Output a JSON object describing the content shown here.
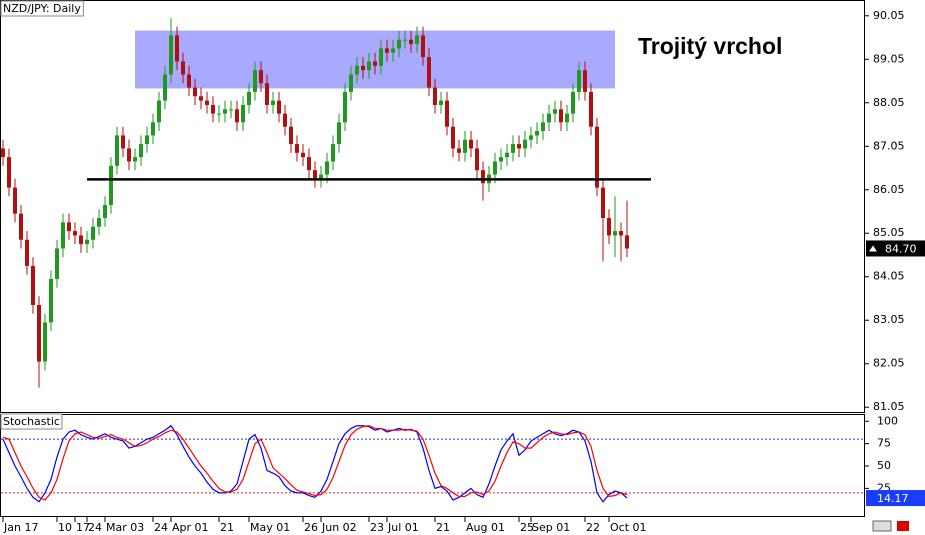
{
  "chart_data": [
    {
      "type": "candlestick",
      "title": "NZD/JPY: Daily",
      "annotation": "Trojitý vrchol",
      "categories": [
        "Jan 17",
        null,
        null,
        null,
        null,
        null,
        null,
        null,
        null,
        "10",
        null,
        null,
        "17",
        null,
        "24",
        null,
        null,
        "Mar 03",
        null,
        null,
        null,
        null,
        null,
        null,
        null,
        "24",
        null,
        null,
        "Apr 01",
        null,
        null,
        null,
        null,
        null,
        null,
        null,
        "21",
        null,
        null,
        null,
        null,
        "May 01",
        null,
        null,
        null,
        null,
        null,
        null,
        null,
        null,
        "26",
        null,
        null,
        "Jun 02",
        null,
        null,
        null,
        null,
        null,
        null,
        null,
        "23",
        null,
        null,
        "Jul 01",
        null,
        null,
        null,
        null,
        null,
        null,
        null,
        "21",
        null,
        null,
        null,
        null,
        "Aug 01",
        null,
        null,
        null,
        null,
        null,
        null,
        null,
        null,
        "25",
        null,
        "Sep 01",
        null,
        null,
        null,
        null,
        null,
        null,
        null,
        null,
        "22",
        null,
        null,
        null,
        "Oct 01",
        null,
        null,
        null
      ],
      "open": [
        87.0,
        86.8,
        86.1,
        85.5,
        84.9,
        84.3,
        83.4,
        82.1,
        83.0,
        84.0,
        84.7,
        85.3,
        85.1,
        85.0,
        84.8,
        84.9,
        85.2,
        85.4,
        85.7,
        86.6,
        87.3,
        87.0,
        86.7,
        86.8,
        87.1,
        87.3,
        87.6,
        88.1,
        88.7,
        89.6,
        89.0,
        88.7,
        88.4,
        88.2,
        88.1,
        88.0,
        87.8,
        87.8,
        87.9,
        87.9,
        87.6,
        88.0,
        88.3,
        88.8,
        88.5,
        88.0,
        88.1,
        87.8,
        87.5,
        87.1,
        86.9,
        86.8,
        86.5,
        86.3,
        86.4,
        86.7,
        87.1,
        87.6,
        88.3,
        88.7,
        88.9,
        88.8,
        89.0,
        88.9,
        89.3,
        89.2,
        89.3,
        89.5,
        89.5,
        89.4,
        89.6,
        89.1,
        88.4,
        88.0,
        88.1,
        87.5,
        87.0,
        86.9,
        87.2,
        87.0,
        86.5,
        86.2,
        86.4,
        86.7,
        86.8,
        86.9,
        87.1,
        87.0,
        87.2,
        87.3,
        87.4,
        87.6,
        87.8,
        87.9,
        87.6,
        87.8,
        88.3,
        88.8,
        88.3,
        87.5,
        86.1,
        85.4,
        85.0,
        85.1,
        85.0
      ],
      "high": [
        87.2,
        87.0,
        86.3,
        85.7,
        85.1,
        84.5,
        83.6,
        83.2,
        84.2,
        84.9,
        85.5,
        85.5,
        85.3,
        85.2,
        85.1,
        85.4,
        85.6,
        85.9,
        86.8,
        87.5,
        87.5,
        87.2,
        87.0,
        87.3,
        87.5,
        87.8,
        88.3,
        88.9,
        90.0,
        89.8,
        89.2,
        88.9,
        88.6,
        88.4,
        88.3,
        88.2,
        88.0,
        88.1,
        88.1,
        88.1,
        88.2,
        88.5,
        89.0,
        89.0,
        88.7,
        88.3,
        88.3,
        88.0,
        87.7,
        87.3,
        87.1,
        87.0,
        86.7,
        86.6,
        86.9,
        87.3,
        87.8,
        88.5,
        88.9,
        89.1,
        89.1,
        89.2,
        89.2,
        89.5,
        89.5,
        89.5,
        89.7,
        89.7,
        89.7,
        89.8,
        89.8,
        89.3,
        88.6,
        88.3,
        88.3,
        87.7,
        87.2,
        87.4,
        87.4,
        87.2,
        86.7,
        86.6,
        86.9,
        87.0,
        87.1,
        87.3,
        87.3,
        87.4,
        87.5,
        87.6,
        87.8,
        88.0,
        88.1,
        88.1,
        88.0,
        88.5,
        89.0,
        89.0,
        88.5,
        87.7,
        86.3,
        85.6,
        85.9,
        85.3,
        85.8
      ],
      "low": [
        86.6,
        85.9,
        85.3,
        84.7,
        84.1,
        83.2,
        81.5,
        81.9,
        82.8,
        83.8,
        84.5,
        84.9,
        84.8,
        84.6,
        84.6,
        84.7,
        85.0,
        85.2,
        85.5,
        86.4,
        86.8,
        86.5,
        86.5,
        86.6,
        86.9,
        87.1,
        87.4,
        87.9,
        88.5,
        88.8,
        88.5,
        88.2,
        88.0,
        87.9,
        87.8,
        87.6,
        87.6,
        87.6,
        87.7,
        87.4,
        87.4,
        87.8,
        88.1,
        88.3,
        87.8,
        87.8,
        87.6,
        87.3,
        86.9,
        86.7,
        86.6,
        86.3,
        86.1,
        86.1,
        86.2,
        86.5,
        86.9,
        87.4,
        88.1,
        88.5,
        88.6,
        88.6,
        88.7,
        88.7,
        89.0,
        89.0,
        89.1,
        89.3,
        89.2,
        89.2,
        88.9,
        88.2,
        87.8,
        87.8,
        87.3,
        86.8,
        86.7,
        86.7,
        86.8,
        86.3,
        85.8,
        86.0,
        86.2,
        86.5,
        86.6,
        86.7,
        86.8,
        86.8,
        87.0,
        87.1,
        87.2,
        87.4,
        87.6,
        87.4,
        87.4,
        87.6,
        88.1,
        88.1,
        87.3,
        85.9,
        84.4,
        84.8,
        84.5,
        84.4,
        84.5
      ],
      "close": [
        86.8,
        86.1,
        85.5,
        84.9,
        84.3,
        83.4,
        82.1,
        83.0,
        84.0,
        84.7,
        85.3,
        85.1,
        85.0,
        84.8,
        84.9,
        85.2,
        85.4,
        85.7,
        86.6,
        87.3,
        87.0,
        86.7,
        86.8,
        87.1,
        87.3,
        87.6,
        88.1,
        88.7,
        89.6,
        89.0,
        88.7,
        88.4,
        88.2,
        88.1,
        88.0,
        87.8,
        87.8,
        87.9,
        87.9,
        87.6,
        88.0,
        88.3,
        88.8,
        88.5,
        88.0,
        88.1,
        87.8,
        87.5,
        87.1,
        86.9,
        86.8,
        86.5,
        86.3,
        86.4,
        86.7,
        87.1,
        87.6,
        88.3,
        88.7,
        88.9,
        88.8,
        89.0,
        88.9,
        89.3,
        89.2,
        89.3,
        89.5,
        89.5,
        89.4,
        89.6,
        89.1,
        88.4,
        88.0,
        88.1,
        87.5,
        87.0,
        86.9,
        87.2,
        87.0,
        86.5,
        86.2,
        86.4,
        86.7,
        86.8,
        86.9,
        87.1,
        87.0,
        87.2,
        87.3,
        87.4,
        87.6,
        87.8,
        87.9,
        87.6,
        87.8,
        88.3,
        88.8,
        88.3,
        87.5,
        86.1,
        85.4,
        85.0,
        85.1,
        85.0,
        84.7
      ],
      "up_color": "#1f9a1f",
      "down_color": "#b01010",
      "ylim": [
        80.94,
        90.39
      ],
      "yticks": [
        81.05,
        82.05,
        83.05,
        84.05,
        85.05,
        86.05,
        87.05,
        88.05,
        89.05,
        90.05
      ],
      "current_price": {
        "value": 84.7,
        "label": "84.70"
      },
      "zone": {
        "from": 88.38,
        "to": 89.71,
        "start": 22,
        "end": 102,
        "color": "#a9a9ff"
      },
      "support": {
        "value": 86.29,
        "start": 14,
        "end": 108,
        "color": "#000000"
      }
    },
    {
      "type": "line",
      "title": "Stochastic",
      "series": [
        {
          "color": "#0000ff",
          "values": [
            80,
            65,
            50,
            38,
            25,
            15,
            10,
            20,
            35,
            60,
            80,
            88,
            90,
            85,
            82,
            80,
            83,
            86,
            82,
            80,
            78,
            70,
            72,
            76,
            80,
            82,
            86,
            90,
            95,
            85,
            72,
            60,
            50,
            42,
            32,
            24,
            20,
            20,
            22,
            30,
            55,
            80,
            85,
            70,
            45,
            42,
            38,
            28,
            22,
            20,
            20,
            17,
            15,
            22,
            35,
            55,
            75,
            86,
            92,
            95,
            95,
            94,
            90,
            92,
            88,
            90,
            92,
            90,
            91,
            88,
            70,
            45,
            25,
            27,
            22,
            12,
            15,
            20,
            25,
            18,
            15,
            30,
            50,
            68,
            78,
            86,
            62,
            68,
            78,
            82,
            86,
            90,
            86,
            84,
            86,
            90,
            88,
            78,
            55,
            20,
            10,
            18,
            22,
            20,
            14.17
          ]
        },
        {
          "color": "#ff0000",
          "values": [
            82,
            80,
            65,
            50,
            38,
            25,
            15,
            12,
            20,
            35,
            58,
            78,
            86,
            88,
            85,
            82,
            81,
            83,
            85,
            82,
            80,
            76,
            72,
            73,
            76,
            80,
            83,
            87,
            90,
            88,
            80,
            70,
            60,
            50,
            42,
            33,
            25,
            21,
            21,
            24,
            35,
            55,
            75,
            80,
            65,
            48,
            42,
            36,
            29,
            23,
            21,
            19,
            17,
            18,
            24,
            37,
            55,
            73,
            85,
            91,
            94,
            95,
            92,
            92,
            90,
            90,
            90,
            91,
            90,
            89,
            80,
            62,
            42,
            28,
            25,
            20,
            16,
            16,
            20,
            21,
            18,
            22,
            33,
            50,
            65,
            77,
            75,
            70,
            70,
            76,
            82,
            86,
            88,
            86,
            85,
            87,
            88,
            85,
            72,
            45,
            25,
            16,
            17,
            20,
            18
          ]
        }
      ],
      "levels": [
        {
          "value": 80,
          "color": "#3030c0"
        },
        {
          "value": 20,
          "color": "#e02020"
        }
      ],
      "ylim": [
        -7,
        107
      ],
      "yticks": [
        25,
        50,
        75,
        100
      ]
    }
  ]
}
